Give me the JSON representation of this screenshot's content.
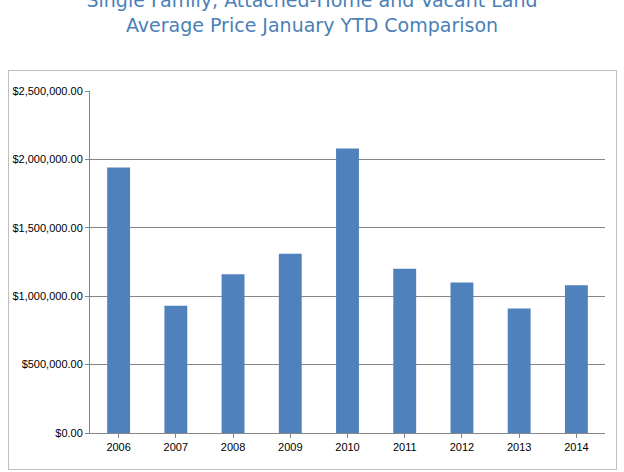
{
  "chart_data": {
    "type": "bar",
    "title": "Single Family, Attached-Home and Vacant Land\nAverage Price January YTD Comparison",
    "categories": [
      "2006",
      "2007",
      "2008",
      "2009",
      "2010",
      "2011",
      "2012",
      "2013",
      "2014"
    ],
    "values": [
      1940000,
      930000,
      1160000,
      1310000,
      2080000,
      1200000,
      1100000,
      910000,
      1080000
    ],
    "color": "#4f81bd",
    "ylim": [
      0,
      2500000
    ],
    "yticks": [
      {
        "value": 0,
        "label": "$0.00"
      },
      {
        "value": 500000,
        "label": "$500,000.00"
      },
      {
        "value": 1000000,
        "label": "$1,000,000.00"
      },
      {
        "value": 1500000,
        "label": "$1,500,000.00"
      },
      {
        "value": 2000000,
        "label": "$2,000,000.00"
      },
      {
        "value": 2500000,
        "label": "$2,500,000.00"
      }
    ],
    "grid": true
  }
}
